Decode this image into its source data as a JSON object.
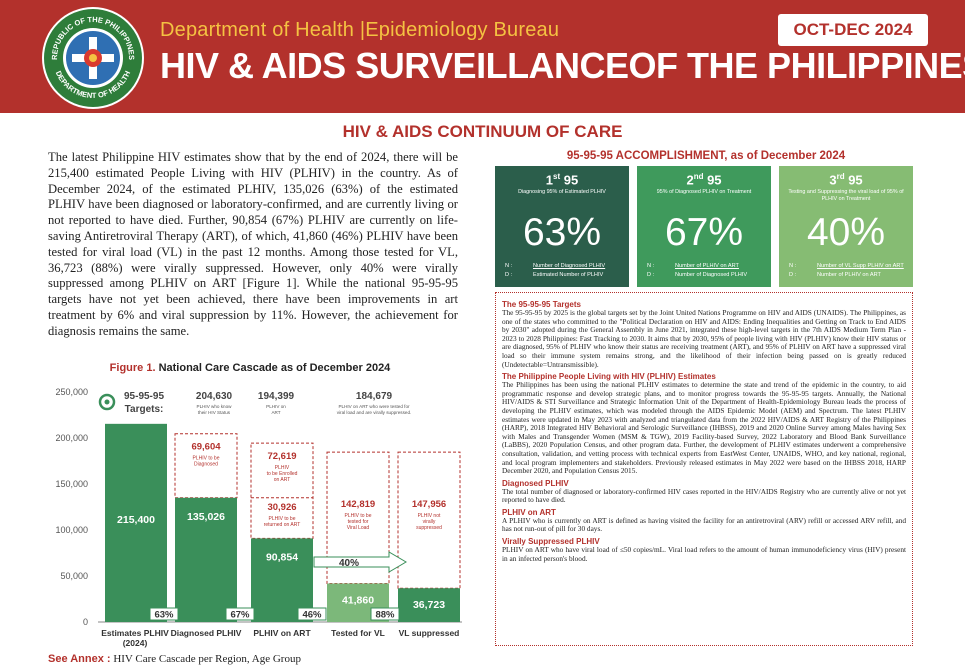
{
  "header": {
    "department": "Department of Health |Epidemiology Bureau",
    "title": "HIV & AIDS SURVEILLANCEOF THE PHILIPPINES",
    "period": "OCT-DEC 2024",
    "seal": {
      "top_text": "REPUBLIC OF THE PHILIPPINES",
      "bottom_text": "DEPARTMENT OF HEALTH"
    }
  },
  "section_title": "HIV & AIDS CONTINUUM OF CARE",
  "intro": "The latest Philippine HIV estimates show that by the end of 2024, there will be 215,400 estimated People Living with HIV (PLHIV) in the country. As of December 2024, of the estimated PLHIV, 135,026 (63%) of the estimated PLHIV have been diagnosed or laboratory-confirmed, and are currently living or not reported to have died. Further, 90,854 (67%) PLHIV are currently on life-saving Antiretroviral Therapy (ART), of which, 41,860 (46%) PLHIV have been tested for viral load (VL) in the past 12 months. Among those tested for VL, 36,723 (88%) were virally suppressed. However, only 40% were virally suppressed among PLHIV on ART [Figure 1]. While the national 95-95-95 targets have not yet been achieved, there have been improvements in art treatment by 6% and viral suppression by 11%. However, the achievement for diagnosis remains the same.",
  "figure": {
    "label": "Figure 1.",
    "caption": "National Care Cascade as of December 2024"
  },
  "chart_data": {
    "type": "bar",
    "categories": [
      "Estimates PLHIV (2024)",
      "Diagnosed PLHIV",
      "PLHIV on ART",
      "Tested for VL",
      "VL suppressed"
    ],
    "values": [
      215400,
      135026,
      90854,
      41860,
      36723
    ],
    "value_labels": [
      "215,400",
      "135,026",
      "90,854",
      "41,860",
      "36,723"
    ],
    "ylim": [
      0,
      250000
    ],
    "yticks": [
      0,
      50000,
      100000,
      150000,
      200000,
      250000
    ],
    "ytick_labels": [
      "0",
      "50,000",
      "100,000",
      "150,000",
      "200,000",
      "250,000"
    ],
    "percent_labels": [
      "63%",
      "67%",
      "46%",
      "88%"
    ],
    "targets_label": "95-95-95 Targets:",
    "targets": [
      {
        "value": 204630,
        "value_label": "204,630",
        "desc": "PLHIV who know their HIV Status"
      },
      {
        "value": 194399,
        "value_label": "194,399",
        "desc": "PLHIV on ART"
      },
      {
        "value": 184679,
        "value_label": "184,679",
        "desc": "PLHIV on ART who were tested for viral load and are virally suppressed."
      }
    ],
    "gaps": [
      {
        "bar": 1,
        "value": 69604,
        "label": "69,604",
        "desc": [
          "PLHIV to be",
          "Diagnosed"
        ]
      },
      {
        "bar": 2,
        "value": 72619,
        "label": "72,619",
        "desc": [
          "PLHIV",
          "to be Enrolled",
          "on ART"
        ]
      },
      {
        "bar": 2,
        "value": 30926,
        "label": "30,926",
        "desc": [
          "PLHIV to be",
          "returned on ART"
        ]
      },
      {
        "bar": 3,
        "value": 142819,
        "label": "142,819",
        "desc": [
          "PLHIV to be",
          "tested for",
          "Viral Load"
        ]
      },
      {
        "bar": 4,
        "value": 147956,
        "label": "147,956",
        "desc": [
          "PLHIV not",
          "virally",
          "suppressed"
        ]
      }
    ],
    "overall_suppression": "40%",
    "colors": {
      "bar_main": "#3a8f5a",
      "bar_light": "#7cb87a",
      "gap": "#b3312c",
      "axis": "#555555"
    }
  },
  "annex": {
    "label": "See Annex :",
    "text": "HIV Care Cascade per Region, Age Group"
  },
  "accomplishment": {
    "title": "95-95-95 ACCOMPLISHMENT, as of December 2024",
    "cards": [
      {
        "ordinal": "1",
        "suffix": "st",
        "name": "95",
        "subtitle": "Diagnosing 95% of Estimated PLHIV",
        "percent": "63%",
        "numerator": "Number of Diagnosed PLHIV",
        "denominator": "Estimated Number of PLHIV",
        "color": "#2b5e4b"
      },
      {
        "ordinal": "2",
        "suffix": "nd",
        "name": "95",
        "subtitle": "95% of Diagnosed PLHIV on Treatment",
        "percent": "67%",
        "numerator": "Number of PLHIV on ART",
        "denominator": "Number of Diagnosed PLHIV",
        "color": "#3f9a5c"
      },
      {
        "ordinal": "3",
        "suffix": "rd",
        "name": "95",
        "subtitle": "Testing and Suppressing the viral load of 95% of PLHIV on Treatment",
        "percent": "40%",
        "numerator": "Number of VL Supp PLHIV on ART",
        "denominator": "Number of PLHIV on ART",
        "color": "#86bc73"
      }
    ],
    "frac_keys": {
      "n": "N",
      "d": "D"
    }
  },
  "notes": [
    {
      "heading": "The 95-95-95 Targets",
      "text": "The 95-95-95 by 2025 is the global targets set by the Joint United Nations Programme on HIV and AIDS (UNAIDS). The Philippines, as one of the states who committed to the \"Political Declaration on HIV and AIDS: Ending Inequalities and Getting on Track to End AIDS by 2030\" adopted during the General Assembly in June 2021, integrated these high-level targets in the 7th AIDS Medium Term Plan - 2023 to 2028 Philippines: Fast Tracking to 2030. It aims that by 2030, 95% of people living with HIV (PLHIV) know their HIV status or are diagnosed, 95% of PLHIV who know their status are receiving treatment (ART), and 95% of PLHIV on ART have a suppressed viral load so their immune system remains strong, and the likelihood of their infection being passed on is greatly reduced (Undetectable=Untransmissible)."
    },
    {
      "heading": "The Philippine People Living with HIV (PLHIV) Estimates",
      "text": "The Philippines has been using the national PLHIV estimates to determine the state and trend of the epidemic in the country, to aid programmatic response and develop strategic plans, and to monitor progress towards the 95-95-95 targets. Annually, the National HIV/AIDS & STI Surveillance and Strategic Information Unit of the Department of Health-Epidemiology Bureau leads the process of developing the PLHIV estimates, which was modeled through the AIDS Epidemic Model (AEM) and Spectrum. The latest PLHIV estimates were updated in May 2023 with analyzed and triangulated data from the 2022 HIV/AIDS & ART Registry of the Philippines (HARP), 2018 Integrated HIV Behavioral and Serologic Surveillance (IHBSS), 2019 and 2020 Online Survey among Males having Sex with Males and Transgender Women (MSM & TGW), 2019 Facility-based Survey, 2022 Laboratory and Blood Bank Surveillance (LaBBS), 2020 Population Census, and other program data. Further, the development of PLHIV estimates underwent a comprehensive consultation, validation, and vetting process with technical experts from EastWest Center, UNAIDS, WHO, and key national, regional, and local program implementers and stakeholders. Previously released estimates in May 2022 were based on the IHBSS 2018, HARP December 2020, and Population Census 2015."
    },
    {
      "heading": "Diagnosed PLHIV",
      "text": "The total number of diagnosed or laboratory-confirmed HIV cases reported in the HIV/AIDS Registry who are currently alive or not yet reported to have died."
    },
    {
      "heading": "PLHIV on ART",
      "text": "A PLHIV who is currently on ART is defined as having visited the facility for an antiretroviral (ARV) refill or accessed ARV refill, and has not run-out of pill for 30 days."
    },
    {
      "heading": "Virally Suppressed PLHIV",
      "text": "PLHIV on ART who have viral load of ≤50 copies/mL. Viral load refers to the amount of human immunodeficiency virus (HIV) present in an infected person's blood."
    }
  ]
}
